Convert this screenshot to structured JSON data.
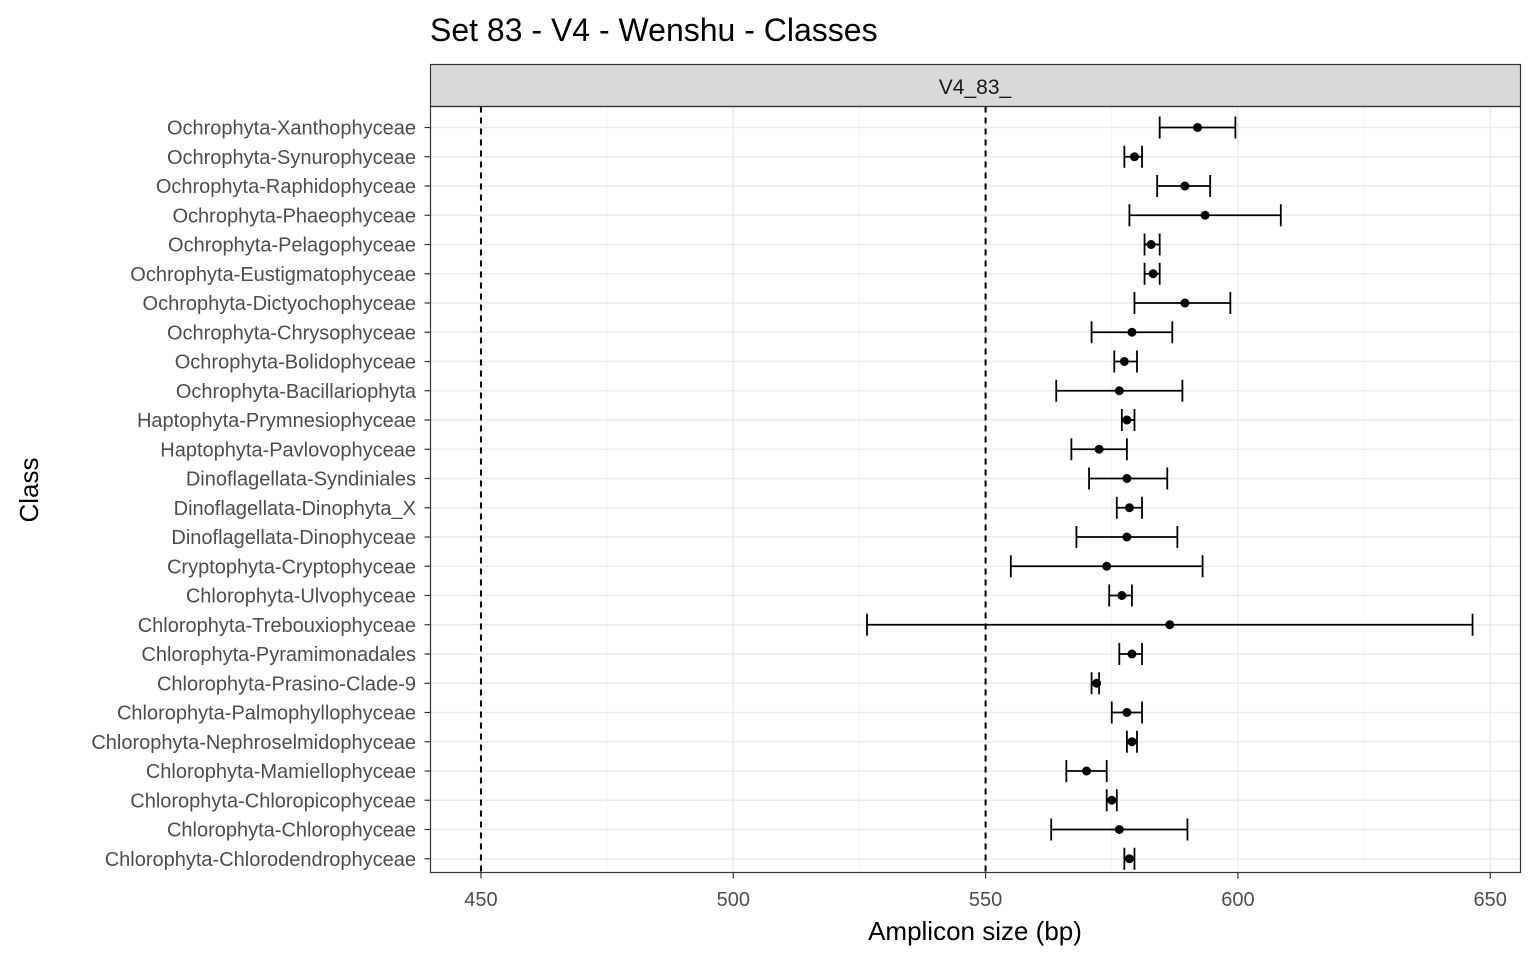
{
  "chart_data": {
    "type": "errorbar",
    "title": "Set 83 - V4 - Wenshu - Classes",
    "facet_label": "V4_83_",
    "xlabel": "Amplicon size (bp)",
    "ylabel": "Class",
    "xlim": [
      440,
      656
    ],
    "xticks": [
      450,
      500,
      550,
      600,
      650
    ],
    "reference_lines": [
      450,
      550
    ],
    "grid": true,
    "categories": [
      "Ochrophyta-Xanthophyceae",
      "Ochrophyta-Synurophyceae",
      "Ochrophyta-Raphidophyceae",
      "Ochrophyta-Phaeophyceae",
      "Ochrophyta-Pelagophyceae",
      "Ochrophyta-Eustigmatophyceae",
      "Ochrophyta-Dictyochophyceae",
      "Ochrophyta-Chrysophyceae",
      "Ochrophyta-Bolidophyceae",
      "Ochrophyta-Bacillariophyta",
      "Haptophyta-Prymnesiophyceae",
      "Haptophyta-Pavlovophyceae",
      "Dinoflagellata-Syndiniales",
      "Dinoflagellata-Dinophyta_X",
      "Dinoflagellata-Dinophyceae",
      "Cryptophyta-Cryptophyceae",
      "Chlorophyta-Ulvophyceae",
      "Chlorophyta-Trebouxiophyceae",
      "Chlorophyta-Pyramimonadales",
      "Chlorophyta-Prasino-Clade-9",
      "Chlorophyta-Palmophyllophyceae",
      "Chlorophyta-Nephroselmidophyceae",
      "Chlorophyta-Mamiellophyceae",
      "Chlorophyta-Chloropicophyceae",
      "Chlorophyta-Chlorophyceae",
      "Chlorophyta-Chlorodendrophyceae"
    ],
    "mean": [
      592,
      579.5,
      589.5,
      593.5,
      582.8,
      583.2,
      589.5,
      579,
      577.5,
      576.5,
      578,
      572.5,
      578,
      578.5,
      578,
      574,
      577,
      586.5,
      579,
      572,
      578,
      579,
      570,
      575,
      576.5,
      578.5
    ],
    "lower": [
      584.5,
      577.5,
      584,
      578.5,
      581.5,
      581.5,
      579.5,
      571,
      575.5,
      564,
      577,
      567,
      570.5,
      576,
      568,
      555,
      574.5,
      526.5,
      576.5,
      571,
      575,
      578,
      566,
      574,
      563,
      577.5
    ],
    "upper": [
      599.5,
      581,
      594.5,
      608.5,
      584.5,
      584.5,
      598.5,
      587,
      580,
      589,
      579.5,
      578,
      586,
      581,
      588,
      593,
      579,
      646.5,
      581,
      572.5,
      581,
      580,
      574,
      576,
      590,
      579.5
    ]
  }
}
